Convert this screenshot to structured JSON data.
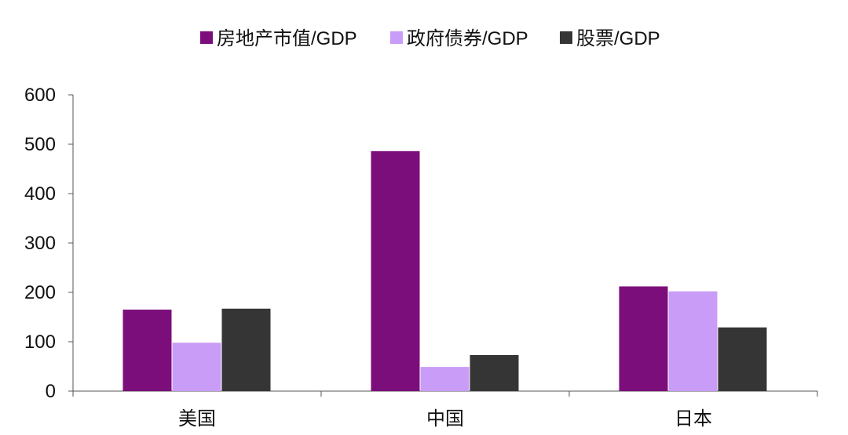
{
  "chart_data": {
    "type": "bar",
    "categories": [
      "美国",
      "中国",
      "日本"
    ],
    "series": [
      {
        "name": "房地产市值/GDP",
        "color": "#7b0e7a",
        "values": [
          165,
          486,
          212
        ]
      },
      {
        "name": "政府债券/GDP",
        "color": "#c99cf7",
        "values": [
          98,
          49,
          202
        ]
      },
      {
        "name": "股票/GDP",
        "color": "#353535",
        "values": [
          167,
          73,
          129
        ]
      }
    ],
    "ylim": [
      0,
      600
    ],
    "yticks": [
      0,
      100,
      200,
      300,
      400,
      500,
      600
    ],
    "legend_position": "top",
    "grid": false
  }
}
